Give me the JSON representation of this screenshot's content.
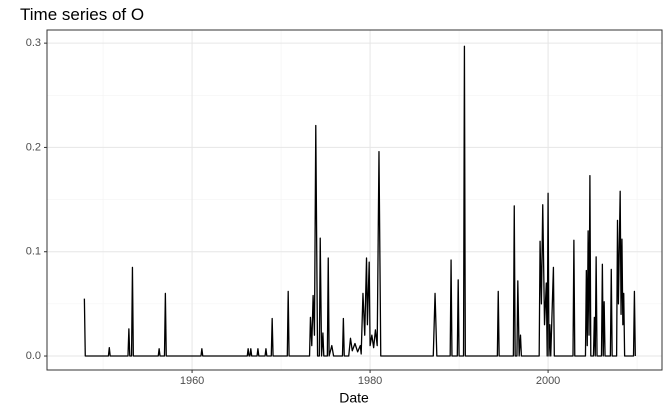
{
  "chart_data": {
    "type": "line",
    "title": "Time series of O",
    "x_label": "Date",
    "xlim": [
      1943.7,
      2012.8
    ],
    "ylim": [
      -0.0134,
      0.3126
    ],
    "xticks": [
      1960,
      1980,
      2000
    ],
    "xminor": [
      1950,
      1970,
      1990,
      2010
    ],
    "yticks": [
      {
        "value": 0,
        "label": "0.0"
      },
      0.1,
      0.2,
      0.3
    ],
    "yminor": [
      0.05,
      0.15,
      0.25
    ],
    "grid": true,
    "series": [
      {
        "color": "#000000",
        "x": [
          1947.9,
          1948.0,
          1950.6,
          1950.7,
          1950.8,
          1952.8,
          1952.9,
          1953.0,
          1953.2,
          1953.3,
          1953.4,
          1956.2,
          1956.3,
          1956.4,
          1956.9,
          1957.0,
          1957.1,
          1961.0,
          1961.1,
          1961.2,
          1966.2,
          1966.3,
          1966.4,
          1966.5,
          1966.6,
          1966.7,
          1967.3,
          1967.4,
          1967.5,
          1968.2,
          1968.3,
          1968.4,
          1968.9,
          1969.0,
          1969.1,
          1970.7,
          1970.8,
          1970.9,
          1973.2,
          1973.3,
          1973.45,
          1973.6,
          1973.75,
          1973.9,
          1974.1,
          1974.3,
          1974.4,
          1974.55,
          1974.7,
          1974.8,
          1975.2,
          1975.3,
          1975.4,
          1975.7,
          1975.9,
          1976.9,
          1977.0,
          1977.1,
          1977.6,
          1977.8,
          1978.0,
          1978.3,
          1978.6,
          1978.9,
          1979.0,
          1979.2,
          1979.4,
          1979.6,
          1979.7,
          1979.9,
          1980.0,
          1980.2,
          1980.4,
          1980.6,
          1980.8,
          1981.0,
          1981.2,
          1987.1,
          1987.3,
          1987.5,
          1989.0,
          1989.1,
          1989.2,
          1989.8,
          1989.9,
          1990.0,
          1990.5,
          1990.6,
          1990.7,
          1994.3,
          1994.4,
          1994.5,
          1996.1,
          1996.2,
          1996.3,
          1996.5,
          1996.6,
          1996.75,
          1996.9,
          1997.0,
          1999.0,
          1999.1,
          1999.25,
          1999.4,
          1999.6,
          1999.8,
          1999.9,
          2000.0,
          2000.1,
          2000.2,
          2000.3,
          2000.6,
          2000.7,
          2002.8,
          2002.9,
          2003.0,
          2004.2,
          2004.3,
          2004.4,
          2004.5,
          2004.6,
          2004.7,
          2004.8,
          2005.1,
          2005.2,
          2005.3,
          2005.4,
          2005.5,
          2006.0,
          2006.1,
          2006.2,
          2006.3,
          2006.4,
          2007.0,
          2007.1,
          2007.2,
          2007.7,
          2007.8,
          2007.9,
          2008.1,
          2008.2,
          2008.3,
          2008.4,
          2008.5,
          2008.6,
          2009.6,
          2009.7,
          2009.8
        ],
        "values": [
          0.055,
          0,
          0,
          0.008,
          0,
          0,
          0.026,
          0,
          0,
          0.085,
          0,
          0,
          0.007,
          0,
          0,
          0.06,
          0,
          0,
          0.007,
          0,
          0,
          0.007,
          0,
          0,
          0.007,
          0,
          0,
          0.007,
          0,
          0,
          0.007,
          0,
          0,
          0.036,
          0,
          0,
          0.062,
          0,
          0,
          0.037,
          0.01,
          0.058,
          0.02,
          0.221,
          0,
          0,
          0.113,
          0,
          0.022,
          0,
          0,
          0.094,
          0,
          0.01,
          0,
          0,
          0.036,
          0,
          0,
          0.017,
          0.005,
          0.012,
          0.004,
          0.01,
          0.002,
          0.06,
          0.02,
          0.094,
          0.03,
          0.09,
          0.01,
          0.02,
          0.008,
          0.025,
          0.01,
          0.196,
          0,
          0,
          0.06,
          0,
          0,
          0.092,
          0,
          0,
          0.073,
          0,
          0,
          0.297,
          0,
          0,
          0.062,
          0,
          0,
          0.144,
          0,
          0,
          0.072,
          0,
          0.02,
          0,
          0,
          0.11,
          0.05,
          0.145,
          0.03,
          0.07,
          0,
          0.156,
          0,
          0.03,
          0,
          0.085,
          0,
          0,
          0.111,
          0,
          0,
          0.082,
          0.01,
          0.12,
          0.02,
          0.173,
          0,
          0,
          0.037,
          0,
          0.095,
          0,
          0,
          0.088,
          0,
          0.052,
          0,
          0,
          0.083,
          0,
          0,
          0.13,
          0.05,
          0.158,
          0.04,
          0.112,
          0.03,
          0.06,
          0,
          0,
          0.062,
          0
        ]
      }
    ]
  }
}
